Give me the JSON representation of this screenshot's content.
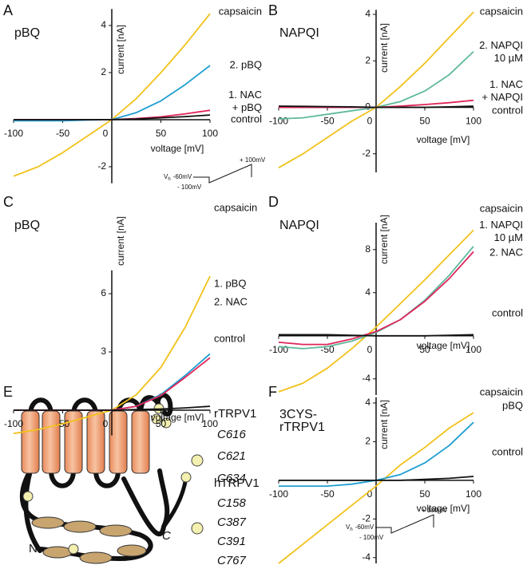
{
  "chart_data": [
    {
      "type": "line",
      "panel": "A",
      "title": "pBQ",
      "ylabel": "current [nA]",
      "xlabel": "voltage [mV]",
      "x": [
        -100,
        -75,
        -50,
        -25,
        0,
        25,
        50,
        75,
        100
      ],
      "xlim": [
        -100,
        100
      ],
      "xticks": [
        -100,
        -50,
        0,
        50,
        100
      ],
      "ylim": [
        -2.7,
        4.7
      ],
      "yticks": [
        -2,
        2,
        4
      ],
      "series": [
        {
          "name": "capsaicin",
          "color": "#f2c21b",
          "values": [
            -2.4,
            -2.0,
            -1.4,
            -0.7,
            0,
            0.9,
            2.0,
            3.2,
            4.5
          ]
        },
        {
          "name": "2. pBQ",
          "color": "#1f9ed0",
          "values": [
            -0.05,
            -0.05,
            -0.05,
            -0.02,
            0,
            0.3,
            0.8,
            1.5,
            2.3
          ]
        },
        {
          "name": [
            "1. NAC",
            "+ pBQ"
          ],
          "color": "#e0245a",
          "values": [
            0,
            0,
            0,
            0,
            0,
            0.05,
            0.12,
            0.25,
            0.4
          ]
        },
        {
          "name": "control",
          "color": "#111111",
          "values": [
            0,
            0,
            0,
            0,
            0,
            0.03,
            0.08,
            0.13,
            0.2
          ]
        }
      ],
      "protocol": {
        "top": "+ 100mV",
        "hold_symbol": "V",
        "hold_subscript": "h",
        "hold_level": "-60mV",
        "bottom": "- 100mV"
      }
    },
    {
      "type": "line",
      "panel": "B",
      "title": "NAPQI",
      "ylabel": "current [nA]",
      "xlabel": "voltage [mV]",
      "x": [
        -100,
        -75,
        -50,
        -25,
        0,
        25,
        50,
        75,
        100
      ],
      "xlim": [
        -100,
        100
      ],
      "xticks": [
        -100,
        -50,
        0,
        50,
        100
      ],
      "ylim": [
        -2.8,
        4.2
      ],
      "yticks": [
        -2,
        0,
        2,
        4
      ],
      "series": [
        {
          "name": "capsaicin",
          "color": "#f2c21b",
          "values": [
            -2.6,
            -2.0,
            -1.3,
            -0.6,
            0,
            0.9,
            1.9,
            3.0,
            4.1
          ]
        },
        {
          "name": [
            "2. NAPQI",
            "10 µM"
          ],
          "color": "#5fb99b",
          "values": [
            -0.5,
            -0.45,
            -0.3,
            -0.15,
            0,
            0.25,
            0.7,
            1.4,
            2.4
          ]
        },
        {
          "name": [
            "1. NAC",
            "+ NAPQI"
          ],
          "color": "#e0245a",
          "values": [
            0,
            0,
            0,
            0,
            0,
            0.05,
            0.12,
            0.2,
            0.3
          ]
        },
        {
          "name": "control",
          "color": "#111111",
          "values": [
            0.05,
            0.04,
            0.03,
            0.02,
            0,
            0,
            0,
            0.02,
            0.05
          ]
        }
      ]
    },
    {
      "type": "line",
      "panel": "C",
      "title": "pBQ",
      "ylabel": "current [nA]",
      "xlabel": "voltage [mV]",
      "x": [
        -100,
        -75,
        -50,
        -25,
        0,
        25,
        50,
        75,
        100
      ],
      "xlim": [
        -100,
        100
      ],
      "xticks": [
        -100,
        -50,
        0,
        50,
        100
      ],
      "ylim": [
        -1.3,
        7.2
      ],
      "yticks": [
        3,
        6
      ],
      "series": [
        {
          "name": "capsaicin",
          "color": "#f2c21b",
          "values": [
            -1.2,
            -1.0,
            -0.7,
            -0.35,
            0,
            0.8,
            2.2,
            4.3,
            6.9
          ]
        },
        {
          "name": "1. pBQ",
          "color": "#1f9ed0",
          "values": [
            0,
            0,
            0,
            0,
            0,
            0.2,
            0.8,
            1.8,
            2.9
          ]
        },
        {
          "name": "2. NAC",
          "color": "#e0245a",
          "values": [
            0,
            0,
            0,
            0,
            0,
            0.2,
            0.75,
            1.7,
            2.7
          ]
        },
        {
          "name": "control",
          "color": "#111111",
          "values": [
            0,
            0,
            0,
            0,
            0,
            0.03,
            0.06,
            0.12,
            0.2
          ]
        }
      ]
    },
    {
      "type": "line",
      "panel": "D",
      "title": "NAPQI",
      "ylabel": "current [nA]",
      "xlabel": "voltage [mV]",
      "x": [
        -100,
        -75,
        -50,
        -25,
        0,
        25,
        50,
        75,
        100
      ],
      "xlim": [
        -100,
        100
      ],
      "xticks": [
        -100,
        -50,
        0,
        50,
        100
      ],
      "ylim": [
        -5.5,
        10.5
      ],
      "yticks": [
        -4,
        4,
        8
      ],
      "series": [
        {
          "name": "capsaicin",
          "color": "#f2c21b",
          "values": [
            -5.2,
            -4.4,
            -3.0,
            -1.2,
            0.8,
            3.0,
            5.2,
            7.5,
            9.8
          ]
        },
        {
          "name": [
            "1. NAPQI",
            "10  µM"
          ],
          "color": "#5fb99b",
          "values": [
            -1.0,
            -1.2,
            -1.0,
            -0.5,
            0.3,
            1.5,
            3.3,
            5.6,
            8.3
          ]
        },
        {
          "name": "2. NAC",
          "color": "#e0245a",
          "values": [
            -0.6,
            -0.8,
            -0.8,
            -0.3,
            0.4,
            1.5,
            3.2,
            5.3,
            7.8
          ]
        },
        {
          "name": "control",
          "color": "#111111",
          "values": [
            0.1,
            0.1,
            0.1,
            0.05,
            0,
            0,
            0,
            0.05,
            0.1
          ]
        }
      ]
    },
    {
      "type": "line",
      "panel": "F",
      "title": [
        "3CYS-",
        "rTRPV1"
      ],
      "ylabel": "current [nA]",
      "xlabel": "voltage [mV]",
      "x": [
        -100,
        -75,
        -50,
        -25,
        0,
        25,
        50,
        75,
        100
      ],
      "xlim": [
        -100,
        100
      ],
      "xticks": [
        -100,
        -50,
        0,
        50,
        100
      ],
      "ylim": [
        -4.3,
        4.3
      ],
      "yticks": [
        -4,
        -2,
        2,
        4
      ],
      "series": [
        {
          "name": "capsaicin",
          "color": "#f2c21b",
          "values": [
            -4.3,
            -3.3,
            -2.3,
            -1.3,
            -0.3,
            0.8,
            1.7,
            2.7,
            3.5
          ]
        },
        {
          "name": "pBQ",
          "color": "#1f9ed0",
          "values": [
            -0.3,
            -0.3,
            -0.3,
            -0.2,
            0,
            0.3,
            0.9,
            1.8,
            3.0
          ]
        },
        {
          "name": "control",
          "color": "#111111",
          "values": [
            0,
            0,
            0,
            0,
            0,
            0,
            0.05,
            0.1,
            0.2
          ]
        }
      ],
      "protocol": {
        "top": "+ 100mV",
        "hold_symbol": "V",
        "hold_subscript": "h",
        "hold_level": "-60mV",
        "bottom": "- 100mV"
      }
    }
  ],
  "diagram": {
    "panel": "E",
    "groups": [
      {
        "name": "rTRPV1",
        "residues": [
          "C616",
          "C621",
          "C634"
        ]
      },
      {
        "name": "hTRPV1",
        "residues": [
          "C158",
          "C387",
          "C391",
          "C767"
        ]
      }
    ],
    "n_terminus": "N",
    "c_terminus": "C"
  }
}
